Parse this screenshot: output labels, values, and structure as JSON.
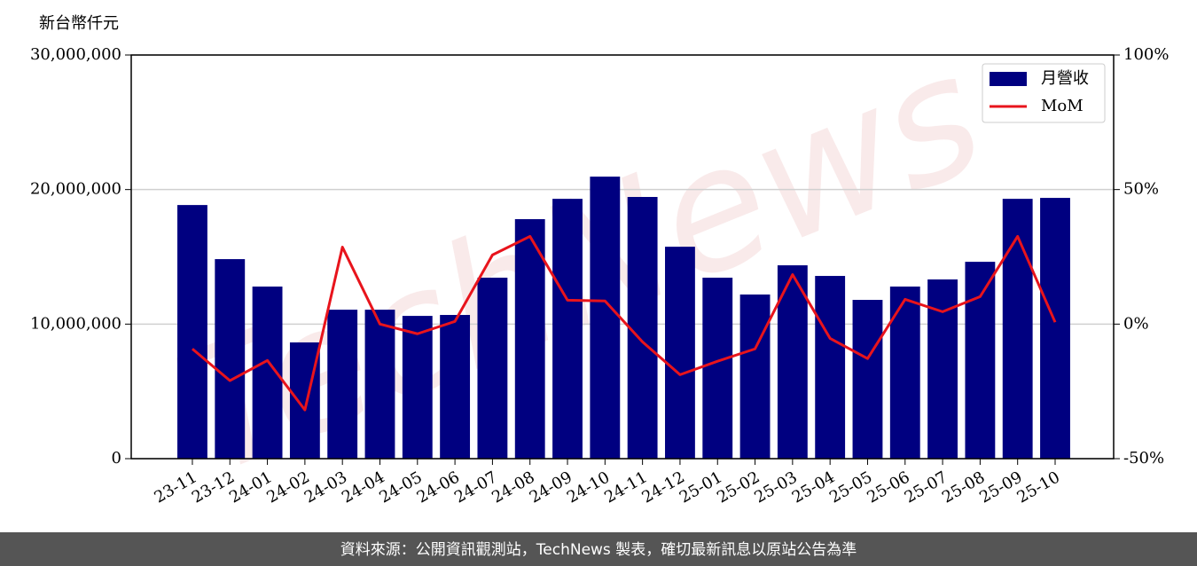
{
  "chart_data": {
    "type": "bar_line",
    "ylabel": "新台幣仟元",
    "watermark": "TechNews",
    "footer": "資料來源：公開資訊觀測站，TechNews 製表，確切最新訊息以原站公告為準",
    "categories": [
      "23-11",
      "23-12",
      "24-01",
      "24-02",
      "24-03",
      "24-04",
      "24-05",
      "24-06",
      "24-07",
      "24-08",
      "24-09",
      "24-10",
      "24-11",
      "24-12",
      "25-01",
      "25-02",
      "25-03",
      "25-04",
      "25-05",
      "25-06",
      "25-07",
      "25-08",
      "25-09",
      "25-10"
    ],
    "series": [
      {
        "name": "月營收",
        "color": "#000080",
        "type": "bar",
        "values": [
          18850000,
          14830000,
          12790000,
          8640000,
          11070000,
          11070000,
          10610000,
          10680000,
          13450000,
          17800000,
          19310000,
          20960000,
          19450000,
          15750000,
          13450000,
          12200000,
          14370000,
          13580000,
          11800000,
          12790000,
          13320000,
          14630000,
          19310000,
          19380000
        ]
      },
      {
        "name": "MoM",
        "color": "#e8141c",
        "type": "line",
        "axis": "y2",
        "values": [
          -9.2,
          -21,
          -13.5,
          -31.9,
          28.6,
          0,
          -3.6,
          1,
          25.7,
          32.6,
          8.9,
          8.6,
          -6.6,
          -18.8,
          -13.8,
          -9.2,
          18.4,
          -5.3,
          -12.8,
          9.2,
          4.6,
          10.2,
          32.6,
          0.7
        ]
      }
    ],
    "ylim": [
      0,
      30000000
    ],
    "yticks": [
      0,
      {
        "value": 10000000,
        "label": "10,000,000"
      },
      {
        "value": 20000000,
        "label": "20,000,000"
      },
      {
        "value": 30000000,
        "label": "30,000,000"
      }
    ],
    "y2lim": [
      -50,
      100
    ],
    "y2ticks": [
      {
        "value": -50,
        "label": "-50%"
      },
      {
        "value": 0,
        "label": "0%"
      },
      {
        "value": 50,
        "label": "50%"
      },
      {
        "value": 100,
        "label": "100%"
      }
    ],
    "grid": true,
    "legend": "upper right"
  }
}
